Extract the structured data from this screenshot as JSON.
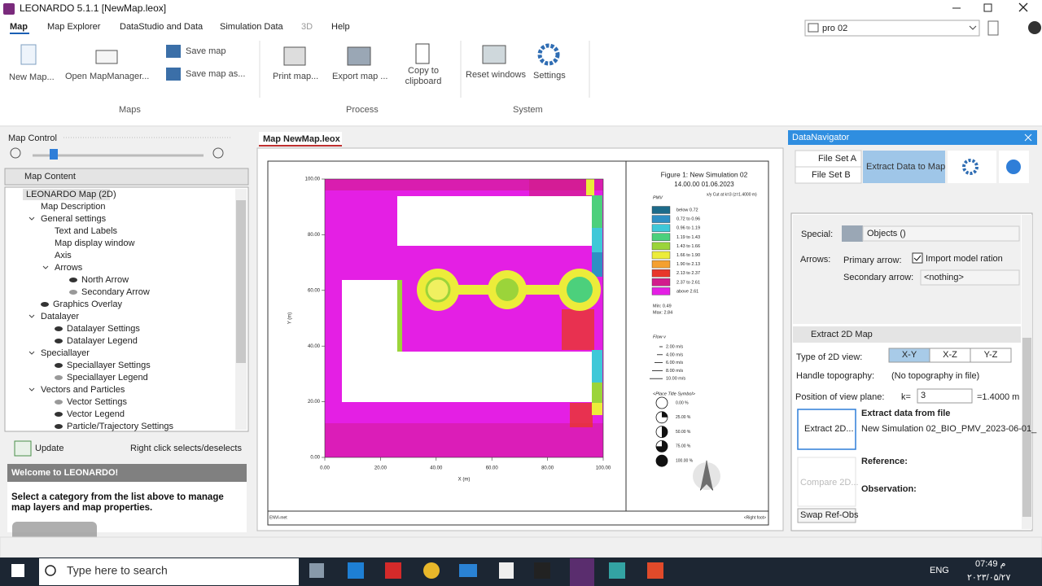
{
  "window": {
    "title": "LEONARDO 5.1.1 [NewMap.leox]"
  },
  "menu": [
    "Map",
    "Map Explorer",
    "DataStudio and Data",
    "Simulation Data",
    "3D",
    "Help"
  ],
  "project": "pro 02",
  "ribbon": {
    "buttons": [
      "New Map...",
      "Open MapManager...",
      "Save map",
      "Save map as...",
      "Print map...",
      "Export map ...",
      "Copy to clipboard",
      "Reset windows",
      "Settings"
    ],
    "groups": [
      "Maps",
      "Process",
      "System"
    ]
  },
  "map_control": {
    "title": "Map Control",
    "content_header": "Map Content",
    "tree": [
      "LEONARDO Map (2D)",
      "Map Description",
      "General settings",
      "Text and Labels",
      "Map display window",
      "Axis",
      "Arrows",
      "North Arrow",
      "Secondary Arrow",
      "Graphics Overlay",
      "Datalayer",
      "Datalayer Settings",
      "Datalayer Legend",
      "Speciallayer",
      "Speciallayer Settings",
      "Speciallayer Legend",
      "Vectors and Particles",
      "Vector Settings",
      "Vector Legend",
      "Particle/Trajectory Settings"
    ],
    "update": "Update",
    "hint": "Right click selects/deselects",
    "welcome_title": "Welcome to LEONARDO!",
    "welcome_text": "Select a category from the list above to manage map layers and map properties."
  },
  "map_tab": "Map NewMap.leox",
  "figure": {
    "title": "Figure 1: New Simulation 02",
    "time": "14.00.00 01.06.2023",
    "subtitle": "x/y Cut at k=3 (z=1.4000 m)",
    "legend_title": "PMV",
    "legend": [
      {
        "label": "below 0.72",
        "color": "#1d6b8a"
      },
      {
        "label": "0.72 to 0.96",
        "color": "#2f8fc4"
      },
      {
        "label": "0.96 to 1.19",
        "color": "#3fc8d8"
      },
      {
        "label": "1.19 to 1.43",
        "color": "#4cd07c"
      },
      {
        "label": "1.43 to 1.66",
        "color": "#9bd43a"
      },
      {
        "label": "1.66 to 1.90",
        "color": "#ecec3a"
      },
      {
        "label": "1.90 to 2.13",
        "color": "#f4a030"
      },
      {
        "label": "2.13 to 2.37",
        "color": "#e8362a"
      },
      {
        "label": "2.37 to 2.61",
        "color": "#d21c8c"
      },
      {
        "label": "above 2.61",
        "color": "#e41fe4"
      }
    ],
    "min": "Min: 0.49",
    "max": "Max: 2.84",
    "flow_title": "Flow v",
    "flow": [
      "2.00 m/s",
      "4.00 m/s",
      "6.00 m/s",
      "8.00 m/s",
      "10.00 m/s"
    ],
    "symbol_title": "<Place Title Symbol>",
    "symbols": [
      "0.00 %",
      "25.00 %",
      "50.00 %",
      "75.00 %",
      "100.00 %"
    ],
    "xticks": [
      "0.00",
      "20.00",
      "40.00",
      "60.00",
      "80.00",
      "100.00"
    ],
    "yticks": [
      "0.00",
      "20.00",
      "40.00",
      "60.00",
      "80.00",
      "100.00"
    ],
    "xlabel": "X (m)",
    "ylabel": "Y (m)",
    "left_foot": "ENVI-met",
    "right_foot": "<Right foot>"
  },
  "data_navigator": {
    "title": "DataNavigator",
    "file_set_a": "File Set A",
    "file_set_b": "File Set B",
    "extract_tab": "Extract Data to Map",
    "special_label": "Special:",
    "special_value": "Objects ()",
    "arrows_label": "Arrows:",
    "primary_label": "Primary arrow:",
    "import_label": "Import model ration",
    "secondary_label": "Secondary arrow:",
    "secondary_value": "<nothing>",
    "section": "Extract 2D Map",
    "view_label": "Type of 2D view:",
    "views": [
      "X-Y",
      "X-Z",
      "Y-Z"
    ],
    "topo_label": "Handle topography:",
    "topo_value": "(No topography in file)",
    "plane_label": "Position of view plane:",
    "k_label": "k=",
    "k_value": "3",
    "z_value": "=1.4000 m",
    "extract_button": "Extract 2D...",
    "extract_title": "Extract data from file",
    "extract_file": "New Simulation 02_BIO_PMV_2023-06-01_",
    "compare_button": "Compare 2D...",
    "reference": "Reference:",
    "observation": "Observation:",
    "swap": "Swap Ref-Obs"
  },
  "taskbar": {
    "search": "Type here to search",
    "language": "ENG",
    "time": "07:49 م",
    "date": "۲۰۲۳/۰۵/۲۷"
  }
}
